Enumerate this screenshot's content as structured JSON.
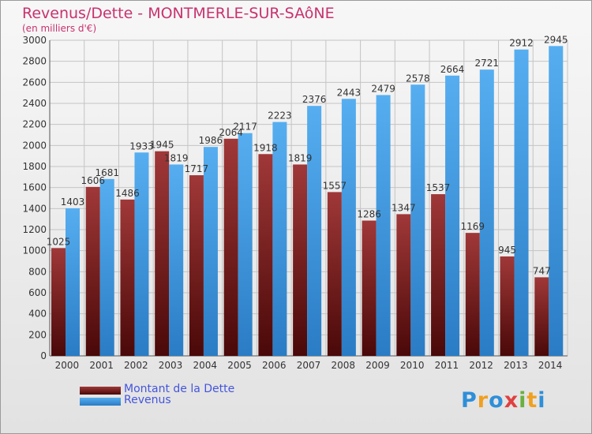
{
  "header": {
    "title": "Revenus/Dette - MONTMERLE-SUR-SAôNE",
    "subtitle": "(en milliers d'€)"
  },
  "chart_data": {
    "type": "bar",
    "title": "Revenus/Dette - MONTMERLE-SUR-SAôNE",
    "subtitle": "(en milliers d'€)",
    "categories": [
      "2000",
      "2001",
      "2002",
      "2003",
      "2004",
      "2005",
      "2006",
      "2007",
      "2008",
      "2009",
      "2010",
      "2011",
      "2012",
      "2013",
      "2014"
    ],
    "series": [
      {
        "name": "Montant de la Dette",
        "color": "#7a1a1a",
        "values": [
          1025,
          1606,
          1486,
          1945,
          1717,
          2064,
          1918,
          1819,
          1557,
          1286,
          1347,
          1537,
          1169,
          945,
          747
        ]
      },
      {
        "name": "Revenus",
        "color": "#4a9fe0",
        "values": [
          1403,
          1681,
          1933,
          1819,
          1986,
          2117,
          2223,
          2376,
          2443,
          2479,
          2578,
          2664,
          2721,
          2912,
          2945
        ]
      }
    ],
    "ylim": [
      0,
      3000
    ],
    "yticks": [
      0,
      200,
      400,
      600,
      800,
      1000,
      1200,
      1400,
      1600,
      1800,
      2000,
      2200,
      2400,
      2600,
      2800,
      3000
    ],
    "grid": true,
    "legend": "bottom-left"
  },
  "legend": {
    "items": [
      "Montant de la Dette",
      "Revenus"
    ]
  },
  "logo": {
    "text": "Proxiti",
    "letters": [
      {
        "ch": "P",
        "color": "#2f8fd8"
      },
      {
        "ch": "r",
        "color": "#f0a020"
      },
      {
        "ch": "o",
        "color": "#2f8fd8"
      },
      {
        "ch": "x",
        "color": "#e04040"
      },
      {
        "ch": "i",
        "color": "#6ab040"
      },
      {
        "ch": "t",
        "color": "#f0a020"
      },
      {
        "ch": "i",
        "color": "#2f8fd8"
      }
    ]
  }
}
